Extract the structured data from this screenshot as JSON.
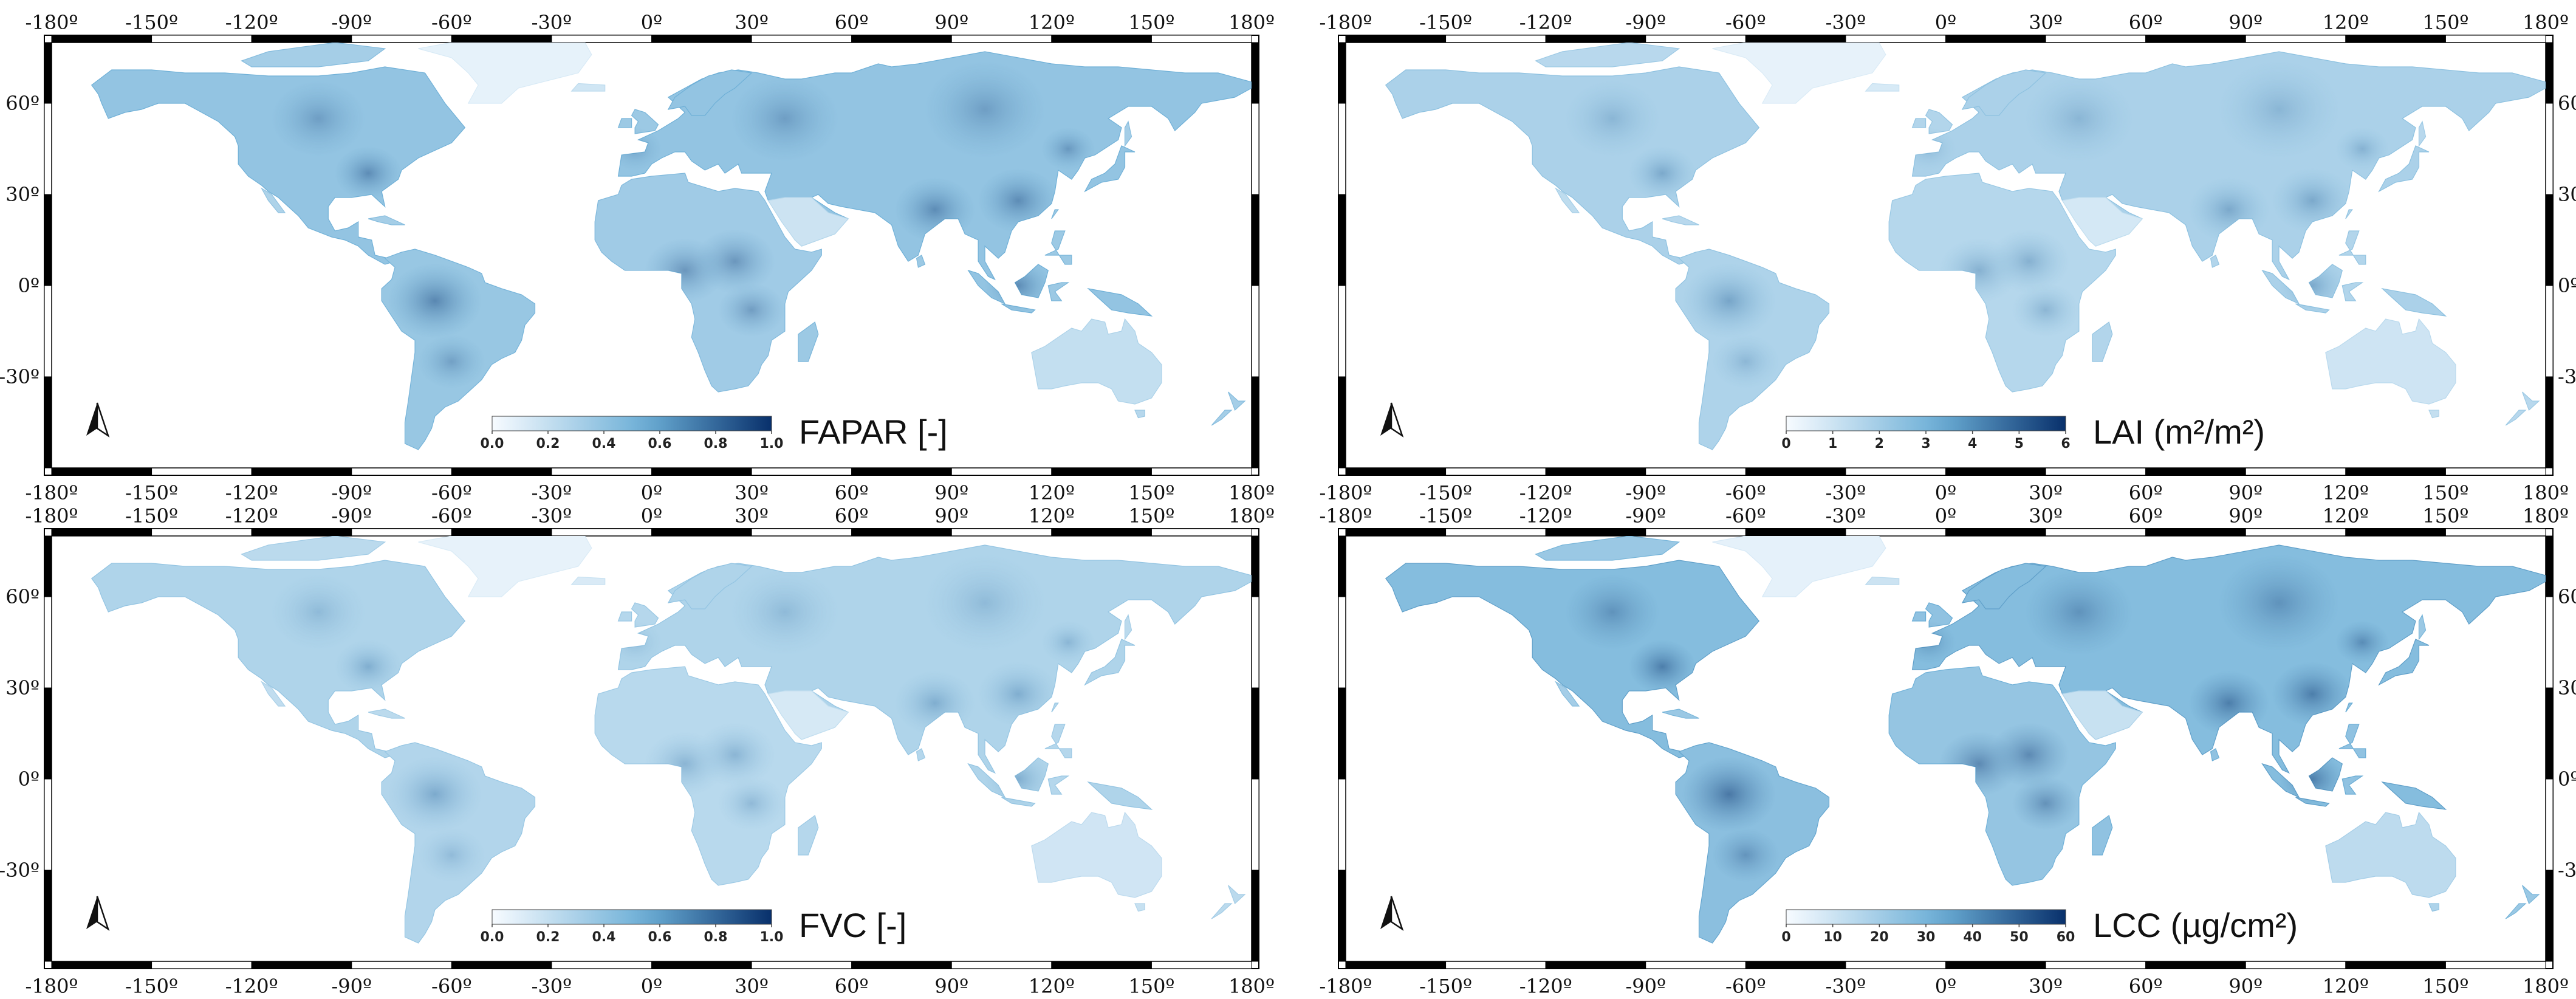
{
  "axes": {
    "lon_ticks": [
      "-180º",
      "-150º",
      "-120º",
      "-90º",
      "-60º",
      "-30º",
      "0º",
      "30º",
      "60º",
      "90º",
      "120º",
      "150º",
      "180º"
    ],
    "lat_ticks": [
      "60º",
      "30º",
      "0º",
      "-30º"
    ],
    "lon_values": [
      -180,
      -150,
      -120,
      -90,
      -60,
      -30,
      0,
      30,
      60,
      90,
      120,
      150,
      180
    ],
    "lat_values": [
      60,
      30,
      0,
      -30
    ],
    "lon_range": [
      -180,
      180
    ],
    "lat_range": [
      -60,
      80
    ]
  },
  "colormap": {
    "name": "Blues",
    "low": "#f7fbff",
    "mid": "#6baed6",
    "high": "#08306b"
  },
  "panels": [
    {
      "id": "fapar",
      "title": "FAPAR [-]",
      "colorbar_ticks": [
        "0.0",
        "0.2",
        "0.4",
        "0.6",
        "0.8",
        "1.0"
      ],
      "colorbar_range": [
        0,
        1
      ],
      "lat_labels_side": "left",
      "intensity": 0.62
    },
    {
      "id": "lai",
      "title": "LAI (m²/m²)",
      "colorbar_ticks": [
        "0",
        "1",
        "2",
        "3",
        "4",
        "5",
        "6"
      ],
      "colorbar_range": [
        0,
        6
      ],
      "lat_labels_side": "right",
      "intensity": 0.45
    },
    {
      "id": "fvc",
      "title": "FVC [-]",
      "colorbar_ticks": [
        "0.0",
        "0.2",
        "0.4",
        "0.6",
        "0.8",
        "1.0"
      ],
      "colorbar_range": [
        0,
        1
      ],
      "lat_labels_side": "left",
      "intensity": 0.42
    },
    {
      "id": "lcc",
      "title": "LCC (µg/cm²)",
      "colorbar_ticks": [
        "0",
        "10",
        "20",
        "30",
        "40",
        "50",
        "60"
      ],
      "colorbar_range": [
        0,
        60
      ],
      "lat_labels_side": "right",
      "intensity": 0.72
    }
  ]
}
